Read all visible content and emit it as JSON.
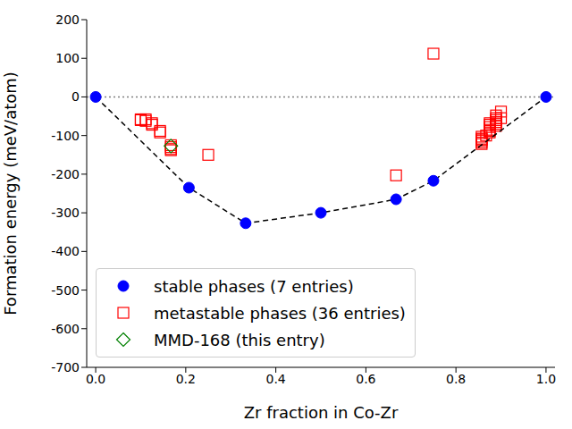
{
  "chart_data": {
    "type": "scatter",
    "xlabel": "Zr fraction in Co-Zr",
    "ylabel": "Formation energy (meV/atom)",
    "xlim": [
      -0.02,
      1.02
    ],
    "ylim": [
      -700,
      200
    ],
    "xticks": [
      {
        "value": 0,
        "label": "0.0"
      },
      0.2,
      0.4,
      0.6,
      0.8,
      {
        "value": 1,
        "label": "1.0"
      }
    ],
    "yticks": [
      -700,
      -600,
      -500,
      -400,
      -300,
      -200,
      -100,
      0,
      100,
      200
    ],
    "legend": "lower left",
    "grid": false,
    "reference_lines": [
      {
        "y": 0,
        "color": "#808080",
        "line_style": "dotted"
      }
    ],
    "series": [
      {
        "name": "metastable phases (36 entries)",
        "color": "#ff0000",
        "marker": "square",
        "x": [
          0.1,
          0.1,
          0.111,
          0.111,
          0.125,
          0.125,
          0.143,
          0.143,
          0.167,
          0.167,
          0.167,
          0.167,
          0.25,
          0.667,
          0.75,
          0.857,
          0.857,
          0.857,
          0.857,
          0.857,
          0.857,
          0.867,
          0.875,
          0.875,
          0.875,
          0.875,
          0.875,
          0.875,
          0.889,
          0.889,
          0.889,
          0.889,
          0.889,
          0.889,
          0.9,
          0.9
        ],
        "values": [
          -58,
          -60,
          -58,
          -62,
          -68,
          -72,
          -88,
          -92,
          -125,
          -130,
          -135,
          -138,
          -150,
          -203,
          112,
          -103,
          -108,
          -110,
          -113,
          -118,
          -122,
          -100,
          -68,
          -72,
          -78,
          -85,
          -88,
          -92,
          -48,
          -55,
          -60,
          -65,
          -70,
          -75,
          -38,
          -55
        ]
      },
      {
        "name": "stable phases (7 entries)",
        "color": "#0000ff",
        "marker": "circle",
        "line_style": "dashed",
        "x": [
          0,
          0.207,
          0.333,
          0.5,
          0.667,
          0.75,
          1
        ],
        "values": [
          0,
          -235,
          -327,
          -300,
          -265,
          -217,
          0
        ]
      },
      {
        "name": "MMD-168 (this entry)",
        "color": "#008000",
        "marker": "diamond",
        "x": [
          0.167
        ],
        "values": [
          -127
        ]
      }
    ]
  }
}
